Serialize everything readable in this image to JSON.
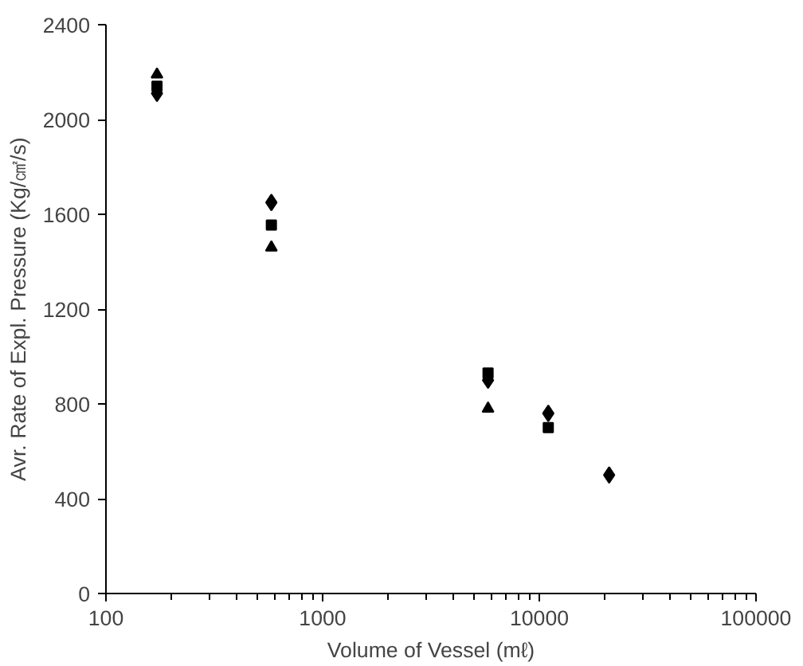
{
  "chart_data": {
    "type": "scatter",
    "xlabel": "Volume of Vessel (mℓ)",
    "ylabel": "Avr. Rate of Expl. Pressure (Kg/㎠/s)",
    "log": "x",
    "grid": false,
    "xlim": [
      100,
      100000
    ],
    "xticks": [
      100,
      1000,
      10000,
      100000
    ],
    "ylim": [
      0,
      2400
    ],
    "yticks": [
      0,
      400,
      800,
      1200,
      1600,
      2000,
      2400
    ],
    "series": [
      {
        "color": "#000000",
        "marker": "diamond",
        "x": [
          172,
          580,
          5800,
          11000,
          21000
        ],
        "values": [
          2110,
          1650,
          900,
          760,
          500
        ]
      },
      {
        "color": "#000000",
        "marker": "square",
        "x": [
          172,
          580,
          5800,
          11000
        ],
        "values": [
          2140,
          1555,
          930,
          700
        ]
      },
      {
        "color": "#000000",
        "marker": "triangle",
        "x": [
          172,
          580,
          5800
        ],
        "values": [
          2190,
          1460,
          780
        ]
      }
    ]
  }
}
